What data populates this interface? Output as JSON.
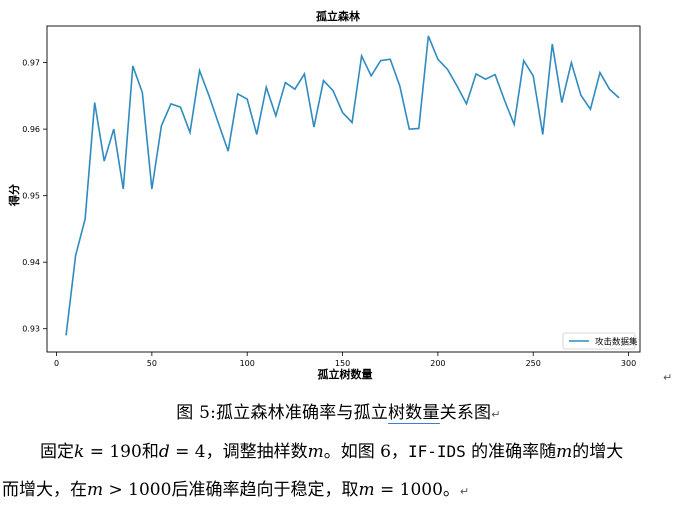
{
  "chart_data": {
    "type": "line",
    "title": "孤立森林",
    "xlabel": "孤立树数量",
    "ylabel": "得分",
    "xlim": [
      -5,
      306
    ],
    "ylim": [
      0.9265,
      0.9755
    ],
    "xticks": [
      0,
      50,
      100,
      150,
      200,
      250,
      300
    ],
    "yticks": [
      0.93,
      0.94,
      0.95,
      0.96,
      0.97
    ],
    "ytick_labels": [
      "0.93",
      "0.94",
      "0.95",
      "0.96",
      "0.97"
    ],
    "legend": "bottom-right",
    "series": [
      {
        "name": "攻击数据集",
        "color": "#2f8bbf",
        "x": [
          5,
          10,
          15,
          20,
          25,
          30,
          35,
          40,
          45,
          50,
          55,
          60,
          65,
          70,
          75,
          80,
          85,
          90,
          95,
          100,
          105,
          110,
          115,
          120,
          125,
          130,
          135,
          140,
          145,
          150,
          155,
          160,
          165,
          170,
          175,
          180,
          185,
          190,
          195,
          200,
          205,
          210,
          215,
          220,
          225,
          230,
          235,
          240,
          245,
          250,
          255,
          260,
          265,
          270,
          275,
          280,
          285,
          290,
          295
        ],
        "values": [
          0.929,
          0.941,
          0.9465,
          0.964,
          0.9552,
          0.96,
          0.951,
          0.9695,
          0.9655,
          0.951,
          0.9605,
          0.9638,
          0.9633,
          0.9595,
          0.9688,
          0.965,
          0.9608,
          0.9567,
          0.9653,
          0.9645,
          0.9592,
          0.9663,
          0.962,
          0.967,
          0.966,
          0.9683,
          0.9603,
          0.9673,
          0.9658,
          0.9625,
          0.961,
          0.971,
          0.968,
          0.9703,
          0.9705,
          0.9665,
          0.96,
          0.9601,
          0.974,
          0.9705,
          0.969,
          0.9665,
          0.9638,
          0.9683,
          0.9675,
          0.9682,
          0.9643,
          0.9607,
          0.9703,
          0.968,
          0.9592,
          0.9728,
          0.964,
          0.97,
          0.9651,
          0.963,
          0.9685,
          0.966,
          0.9647
        ]
      }
    ]
  },
  "caption": {
    "prefix": "图 5:孤立森林准确率与孤立",
    "underlined": "树数量",
    "suffix": "关系图"
  },
  "text": {
    "l1_a": "固定",
    "k": "k",
    "eq1": " = 190",
    "l1_b": "和",
    "d": "d",
    "eq2": " = 4",
    "l1_c": "，调整抽样数",
    "m1": "m",
    "l1_d": "。如图 6，",
    "ifids": "IF-IDS",
    "l1_e": " 的准确率随",
    "m2": "m",
    "l1_f": "的增大",
    "l2_a": "而增大，在",
    "m3": "m",
    "gt": " > 1000",
    "l2_b": "后准确率趋向于稳定，取",
    "m4": "m",
    "eq3": " = 1000",
    "l2_c": "。",
    "return_mark": "↵"
  }
}
